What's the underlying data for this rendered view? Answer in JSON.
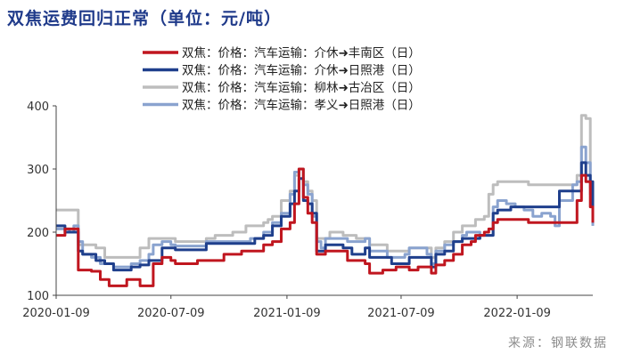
{
  "title": "双焦运费回归正常（单位：元/吨）",
  "source": "来源：钢联数据",
  "chart_data": {
    "type": "line",
    "x_ticks": [
      "2020-01-09",
      "2020-07-09",
      "2021-01-09",
      "2021-07-09",
      "2022-01-09"
    ],
    "x_range": [
      "2020-01-09",
      "2022-05-09"
    ],
    "ylim": [
      100,
      400
    ],
    "y_ticks": [
      100,
      200,
      300,
      400
    ],
    "grid": false,
    "legend_position": "top",
    "series": [
      {
        "name": "双焦：价格：汽车运输：介休➜丰南区（日）",
        "color": "#c0161f",
        "points": [
          [
            "2020-01-09",
            195
          ],
          [
            "2020-01-16",
            195
          ],
          [
            "2020-01-23",
            205
          ],
          [
            "2020-02-06",
            205
          ],
          [
            "2020-02-13",
            140
          ],
          [
            "2020-03-05",
            138
          ],
          [
            "2020-03-19",
            125
          ],
          [
            "2020-04-02",
            115
          ],
          [
            "2020-04-23",
            115
          ],
          [
            "2020-04-30",
            125
          ],
          [
            "2020-05-14",
            125
          ],
          [
            "2020-05-21",
            115
          ],
          [
            "2020-06-04",
            115
          ],
          [
            "2020-06-11",
            150
          ],
          [
            "2020-06-25",
            160
          ],
          [
            "2020-07-09",
            155
          ],
          [
            "2020-07-16",
            150
          ],
          [
            "2020-08-13",
            150
          ],
          [
            "2020-08-20",
            155
          ],
          [
            "2020-09-24",
            155
          ],
          [
            "2020-10-01",
            165
          ],
          [
            "2020-10-22",
            165
          ],
          [
            "2020-10-29",
            170
          ],
          [
            "2020-11-26",
            170
          ],
          [
            "2020-12-03",
            180
          ],
          [
            "2020-12-17",
            185
          ],
          [
            "2020-12-31",
            205
          ],
          [
            "2021-01-14",
            215
          ],
          [
            "2021-01-21",
            245
          ],
          [
            "2021-01-28",
            300
          ],
          [
            "2021-02-04",
            255
          ],
          [
            "2021-02-11",
            230
          ],
          [
            "2021-02-18",
            215
          ],
          [
            "2021-02-25",
            165
          ],
          [
            "2021-03-04",
            165
          ],
          [
            "2021-03-11",
            170
          ],
          [
            "2021-04-08",
            170
          ],
          [
            "2021-04-15",
            155
          ],
          [
            "2021-05-13",
            150
          ],
          [
            "2021-05-20",
            135
          ],
          [
            "2021-06-10",
            140
          ],
          [
            "2021-07-01",
            145
          ],
          [
            "2021-07-22",
            140
          ],
          [
            "2021-08-05",
            145
          ],
          [
            "2021-08-26",
            135
          ],
          [
            "2021-09-02",
            148
          ],
          [
            "2021-09-16",
            155
          ],
          [
            "2021-09-30",
            165
          ],
          [
            "2021-10-14",
            180
          ],
          [
            "2021-10-28",
            185
          ],
          [
            "2021-11-04",
            195
          ],
          [
            "2021-11-18",
            200
          ],
          [
            "2021-11-25",
            205
          ],
          [
            "2021-12-02",
            215
          ],
          [
            "2021-12-09",
            220
          ],
          [
            "2022-01-20",
            220
          ],
          [
            "2022-01-27",
            215
          ],
          [
            "2022-04-07",
            215
          ],
          [
            "2022-04-14",
            250
          ],
          [
            "2022-04-21",
            290
          ],
          [
            "2022-04-28",
            280
          ],
          [
            "2022-05-05",
            240
          ],
          [
            "2022-05-09",
            215
          ]
        ]
      },
      {
        "name": "双焦：价格：汽车运输：介休➜日照港（日）",
        "color": "#1f3f8c",
        "points": [
          [
            "2020-01-09",
            210
          ],
          [
            "2020-01-16",
            210
          ],
          [
            "2020-01-23",
            200
          ],
          [
            "2020-02-06",
            200
          ],
          [
            "2020-02-13",
            170
          ],
          [
            "2020-02-20",
            165
          ],
          [
            "2020-03-12",
            155
          ],
          [
            "2020-03-26",
            150
          ],
          [
            "2020-04-09",
            140
          ],
          [
            "2020-05-07",
            145
          ],
          [
            "2020-05-21",
            148
          ],
          [
            "2020-06-04",
            155
          ],
          [
            "2020-06-25",
            175
          ],
          [
            "2020-07-09",
            175
          ],
          [
            "2020-07-16",
            172
          ],
          [
            "2020-08-20",
            172
          ],
          [
            "2020-09-03",
            182
          ],
          [
            "2020-10-01",
            182
          ],
          [
            "2020-11-05",
            182
          ],
          [
            "2020-11-19",
            190
          ],
          [
            "2020-12-03",
            195
          ],
          [
            "2020-12-17",
            210
          ],
          [
            "2020-12-31",
            225
          ],
          [
            "2021-01-14",
            245
          ],
          [
            "2021-01-21",
            265
          ],
          [
            "2021-01-28",
            285
          ],
          [
            "2021-02-04",
            250
          ],
          [
            "2021-02-11",
            245
          ],
          [
            "2021-02-18",
            230
          ],
          [
            "2021-02-25",
            170
          ],
          [
            "2021-03-04",
            170
          ],
          [
            "2021-03-11",
            180
          ],
          [
            "2021-04-08",
            175
          ],
          [
            "2021-04-22",
            165
          ],
          [
            "2021-05-13",
            175
          ],
          [
            "2021-05-20",
            160
          ],
          [
            "2021-06-10",
            160
          ],
          [
            "2021-06-24",
            150
          ],
          [
            "2021-07-15",
            150
          ],
          [
            "2021-07-22",
            160
          ],
          [
            "2021-08-12",
            160
          ],
          [
            "2021-08-26",
            145
          ],
          [
            "2021-09-02",
            165
          ],
          [
            "2021-09-16",
            170
          ],
          [
            "2021-09-30",
            185
          ],
          [
            "2021-10-14",
            190
          ],
          [
            "2021-10-28",
            190
          ],
          [
            "2021-11-11",
            195
          ],
          [
            "2021-11-25",
            195
          ],
          [
            "2021-12-02",
            230
          ],
          [
            "2021-12-09",
            235
          ],
          [
            "2021-12-23",
            235
          ],
          [
            "2021-12-30",
            240
          ],
          [
            "2022-02-17",
            240
          ],
          [
            "2022-03-10",
            240
          ],
          [
            "2022-03-17",
            265
          ],
          [
            "2022-04-14",
            265
          ],
          [
            "2022-04-21",
            310
          ],
          [
            "2022-04-28",
            290
          ],
          [
            "2022-05-05",
            280
          ],
          [
            "2022-05-09",
            215
          ]
        ]
      },
      {
        "name": "双焦：价格：汽车运输：柳林➜古冶区（日）",
        "color": "#bdbdbd",
        "points": [
          [
            "2020-01-09",
            235
          ],
          [
            "2020-02-06",
            235
          ],
          [
            "2020-02-13",
            180
          ],
          [
            "2020-03-12",
            175
          ],
          [
            "2020-03-26",
            160
          ],
          [
            "2020-05-14",
            160
          ],
          [
            "2020-05-21",
            175
          ],
          [
            "2020-06-04",
            190
          ],
          [
            "2020-07-09",
            190
          ],
          [
            "2020-07-16",
            185
          ],
          [
            "2020-08-27",
            185
          ],
          [
            "2020-09-03",
            190
          ],
          [
            "2020-09-17",
            195
          ],
          [
            "2020-10-01",
            195
          ],
          [
            "2020-10-15",
            200
          ],
          [
            "2020-10-29",
            200
          ],
          [
            "2020-11-05",
            210
          ],
          [
            "2020-11-19",
            210
          ],
          [
            "2020-12-03",
            215
          ],
          [
            "2020-12-10",
            220
          ],
          [
            "2020-12-17",
            225
          ],
          [
            "2020-12-31",
            250
          ],
          [
            "2021-01-14",
            265
          ],
          [
            "2021-01-21",
            290
          ],
          [
            "2021-01-28",
            300
          ],
          [
            "2021-02-04",
            280
          ],
          [
            "2021-02-11",
            265
          ],
          [
            "2021-02-18",
            250
          ],
          [
            "2021-02-25",
            190
          ],
          [
            "2021-03-11",
            190
          ],
          [
            "2021-03-18",
            200
          ],
          [
            "2021-04-08",
            195
          ],
          [
            "2021-04-29",
            190
          ],
          [
            "2021-05-13",
            190
          ],
          [
            "2021-05-20",
            180
          ],
          [
            "2021-06-10",
            180
          ],
          [
            "2021-06-17",
            170
          ],
          [
            "2021-07-15",
            170
          ],
          [
            "2021-07-22",
            175
          ],
          [
            "2021-08-12",
            175
          ],
          [
            "2021-08-26",
            160
          ],
          [
            "2021-09-02",
            175
          ],
          [
            "2021-09-16",
            185
          ],
          [
            "2021-09-30",
            200
          ],
          [
            "2021-10-14",
            210
          ],
          [
            "2021-10-28",
            210
          ],
          [
            "2021-11-04",
            220
          ],
          [
            "2021-11-18",
            225
          ],
          [
            "2021-11-25",
            260
          ],
          [
            "2021-12-02",
            275
          ],
          [
            "2021-12-09",
            280
          ],
          [
            "2022-01-20",
            280
          ],
          [
            "2022-01-27",
            275
          ],
          [
            "2022-04-07",
            275
          ],
          [
            "2022-04-14",
            290
          ],
          [
            "2022-04-21",
            385
          ],
          [
            "2022-04-28",
            380
          ],
          [
            "2022-05-05",
            260
          ],
          [
            "2022-05-09",
            210
          ]
        ]
      },
      {
        "name": "双焦：价格：汽车运输：孝义➜日照港（日）",
        "color": "#8aa3cf",
        "points": [
          [
            "2020-01-09",
            205
          ],
          [
            "2020-01-23",
            205
          ],
          [
            "2020-01-30",
            200
          ],
          [
            "2020-02-06",
            210
          ],
          [
            "2020-02-13",
            185
          ],
          [
            "2020-02-20",
            165
          ],
          [
            "2020-03-05",
            160
          ],
          [
            "2020-03-19",
            150
          ],
          [
            "2020-04-09",
            145
          ],
          [
            "2020-05-07",
            150
          ],
          [
            "2020-05-21",
            155
          ],
          [
            "2020-06-04",
            165
          ],
          [
            "2020-06-11",
            180
          ],
          [
            "2020-06-25",
            185
          ],
          [
            "2020-07-09",
            180
          ],
          [
            "2020-07-16",
            178
          ],
          [
            "2020-08-20",
            178
          ],
          [
            "2020-09-03",
            185
          ],
          [
            "2020-10-01",
            185
          ],
          [
            "2020-11-05",
            185
          ],
          [
            "2020-11-12",
            190
          ],
          [
            "2020-12-03",
            200
          ],
          [
            "2020-12-17",
            215
          ],
          [
            "2020-12-31",
            230
          ],
          [
            "2021-01-14",
            260
          ],
          [
            "2021-01-21",
            295
          ],
          [
            "2021-01-28",
            300
          ],
          [
            "2021-02-04",
            275
          ],
          [
            "2021-02-11",
            260
          ],
          [
            "2021-02-18",
            225
          ],
          [
            "2021-02-25",
            185
          ],
          [
            "2021-03-04",
            175
          ],
          [
            "2021-03-11",
            190
          ],
          [
            "2021-04-08",
            190
          ],
          [
            "2021-04-15",
            185
          ],
          [
            "2021-05-13",
            190
          ],
          [
            "2021-05-20",
            170
          ],
          [
            "2021-06-10",
            170
          ],
          [
            "2021-06-17",
            160
          ],
          [
            "2021-07-15",
            165
          ],
          [
            "2021-07-22",
            175
          ],
          [
            "2021-08-12",
            175
          ],
          [
            "2021-08-19",
            165
          ],
          [
            "2021-08-26",
            150
          ],
          [
            "2021-09-02",
            170
          ],
          [
            "2021-09-16",
            180
          ],
          [
            "2021-09-30",
            185
          ],
          [
            "2021-10-14",
            195
          ],
          [
            "2021-10-21",
            200
          ],
          [
            "2021-11-04",
            200
          ],
          [
            "2021-11-11",
            195
          ],
          [
            "2021-11-25",
            195
          ],
          [
            "2021-12-02",
            240
          ],
          [
            "2021-12-09",
            250
          ],
          [
            "2021-12-23",
            245
          ],
          [
            "2022-01-06",
            240
          ],
          [
            "2022-01-20",
            235
          ],
          [
            "2022-02-03",
            225
          ],
          [
            "2022-02-17",
            230
          ],
          [
            "2022-03-03",
            225
          ],
          [
            "2022-03-10",
            210
          ],
          [
            "2022-03-17",
            250
          ],
          [
            "2022-03-31",
            250
          ],
          [
            "2022-04-07",
            275
          ],
          [
            "2022-04-14",
            280
          ],
          [
            "2022-04-21",
            335
          ],
          [
            "2022-04-28",
            310
          ],
          [
            "2022-05-05",
            270
          ],
          [
            "2022-05-09",
            210
          ]
        ]
      }
    ]
  }
}
